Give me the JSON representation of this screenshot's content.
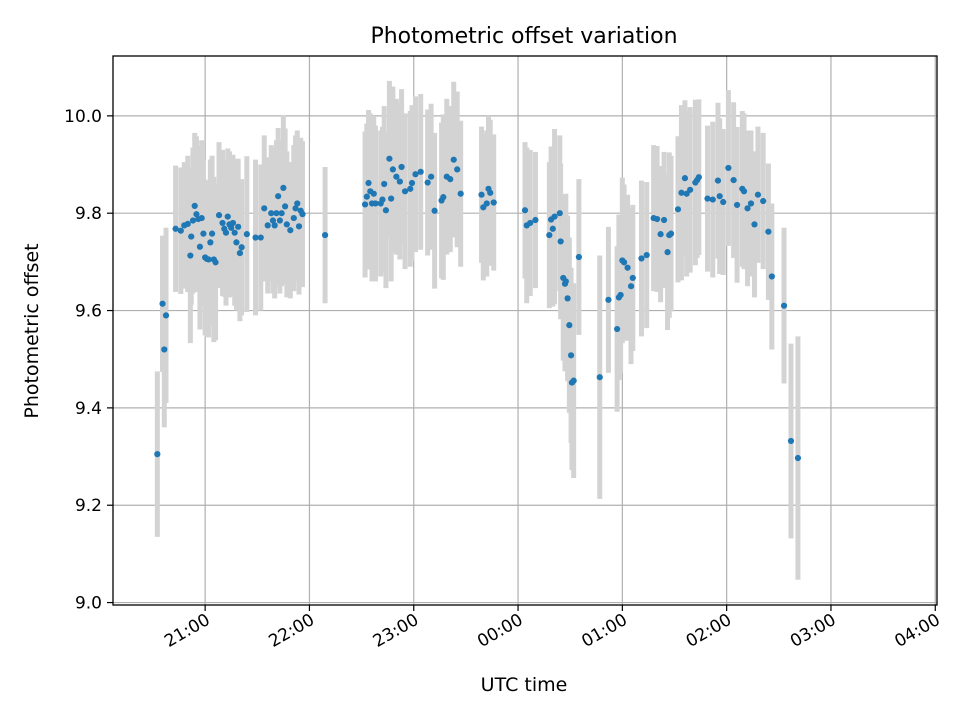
{
  "chart_data": {
    "type": "scatter",
    "title": "Photometric offset variation",
    "xlabel": "UTC time",
    "ylabel": "Photometric offset",
    "x_unit": "minutes after 20:00 UTC",
    "xlim": [
      7,
      481
    ],
    "ylim": [
      8.995,
      10.123
    ],
    "grid": true,
    "colors": {
      "points": "#1f77b4",
      "errorbars": "#d3d3d3",
      "grid": "#b0b0b0"
    },
    "x_ticks": [
      {
        "value": 60,
        "label": "21:00"
      },
      {
        "value": 120,
        "label": "22:00"
      },
      {
        "value": 180,
        "label": "23:00"
      },
      {
        "value": 240,
        "label": "00:00"
      },
      {
        "value": 300,
        "label": "01:00"
      },
      {
        "value": 360,
        "label": "02:00"
      },
      {
        "value": 420,
        "label": "03:00"
      },
      {
        "value": 480,
        "label": "04:00"
      }
    ],
    "y_ticks": [
      {
        "value": 9.0,
        "label": "9.0"
      },
      {
        "value": 9.2,
        "label": "9.2"
      },
      {
        "value": 9.4,
        "label": "9.4"
      },
      {
        "value": 9.6,
        "label": "9.6"
      },
      {
        "value": 9.8,
        "label": "9.8"
      },
      {
        "value": 10.0,
        "label": "10.0"
      }
    ],
    "points": [
      [
        32.5,
        9.305,
        0.17
      ],
      [
        35.5,
        9.614,
        0.14
      ],
      [
        36.5,
        9.52,
        0.16
      ],
      [
        37.5,
        9.59,
        0.18
      ],
      [
        43,
        9.768,
        0.13
      ],
      [
        46,
        9.764,
        0.13
      ],
      [
        48,
        9.775,
        0.13
      ],
      [
        50,
        9.778,
        0.14
      ],
      [
        51.5,
        9.713,
        0.18
      ],
      [
        52,
        9.752,
        0.14
      ],
      [
        53,
        9.785,
        0.15
      ],
      [
        54,
        9.815,
        0.15
      ],
      [
        55,
        9.798,
        0.16
      ],
      [
        56,
        9.788,
        0.15
      ],
      [
        57,
        9.731,
        0.17
      ],
      [
        58,
        9.79,
        0.16
      ],
      [
        59,
        9.758,
        0.15
      ],
      [
        60,
        9.709,
        0.16
      ],
      [
        61,
        9.706,
        0.16
      ],
      [
        62,
        9.705,
        0.16
      ],
      [
        63,
        9.74,
        0.17
      ],
      [
        64,
        9.758,
        0.16
      ],
      [
        65,
        9.705,
        0.17
      ],
      [
        66,
        9.699,
        0.16
      ],
      [
        68,
        9.796,
        0.15
      ],
      [
        70,
        9.78,
        0.15
      ],
      [
        71,
        9.768,
        0.14
      ],
      [
        72,
        9.76,
        0.15
      ],
      [
        73,
        9.793,
        0.14
      ],
      [
        74,
        9.777,
        0.15
      ],
      [
        75,
        9.77,
        0.14
      ],
      [
        76,
        9.78,
        0.14
      ],
      [
        77,
        9.76,
        0.15
      ],
      [
        78,
        9.74,
        0.14
      ],
      [
        79,
        9.772,
        0.14
      ],
      [
        80,
        9.718,
        0.14
      ],
      [
        81,
        9.73,
        0.14
      ],
      [
        84,
        9.757,
        0.16
      ],
      [
        89,
        9.75,
        0.16
      ],
      [
        92,
        9.75,
        0.15
      ],
      [
        94,
        9.81,
        0.15
      ],
      [
        96,
        9.775,
        0.14
      ],
      [
        98,
        9.8,
        0.14
      ],
      [
        99,
        9.785,
        0.15
      ],
      [
        100,
        9.775,
        0.15
      ],
      [
        101,
        9.8,
        0.15
      ],
      [
        102,
        9.835,
        0.14
      ],
      [
        103,
        9.785,
        0.15
      ],
      [
        104,
        9.8,
        0.15
      ],
      [
        105,
        9.852,
        0.15
      ],
      [
        106,
        9.814,
        0.16
      ],
      [
        107,
        9.777,
        0.15
      ],
      [
        109,
        9.765,
        0.14
      ],
      [
        111,
        9.79,
        0.15
      ],
      [
        112,
        9.81,
        0.15
      ],
      [
        113,
        9.82,
        0.15
      ],
      [
        114,
        9.773,
        0.14
      ],
      [
        115,
        9.805,
        0.15
      ],
      [
        116,
        9.798,
        0.15
      ],
      [
        129,
        9.755,
        0.14
      ],
      [
        152,
        9.818,
        0.15
      ],
      [
        153,
        9.834,
        0.15
      ],
      [
        154,
        9.862,
        0.15
      ],
      [
        155,
        9.845,
        0.16
      ],
      [
        156,
        9.82,
        0.16
      ],
      [
        157,
        9.84,
        0.16
      ],
      [
        158,
        9.82,
        0.16
      ],
      [
        161,
        9.82,
        0.15
      ],
      [
        162,
        9.828,
        0.15
      ],
      [
        163,
        9.86,
        0.16
      ],
      [
        164,
        9.806,
        0.16
      ],
      [
        166,
        9.912,
        0.16
      ],
      [
        167,
        9.83,
        0.17
      ],
      [
        168,
        9.89,
        0.17
      ],
      [
        170,
        9.875,
        0.16
      ],
      [
        172,
        9.865,
        0.16
      ],
      [
        173,
        9.895,
        0.16
      ],
      [
        175,
        9.845,
        0.16
      ],
      [
        178,
        9.85,
        0.16
      ],
      [
        179,
        9.862,
        0.16
      ],
      [
        181,
        9.88,
        0.16
      ],
      [
        184,
        9.885,
        0.16
      ],
      [
        188,
        9.863,
        0.15
      ],
      [
        190,
        9.875,
        0.15
      ],
      [
        192,
        9.805,
        0.16
      ],
      [
        196,
        9.826,
        0.16
      ],
      [
        197,
        9.833,
        0.17
      ],
      [
        199,
        9.875,
        0.16
      ],
      [
        201,
        9.87,
        0.15
      ],
      [
        203,
        9.91,
        0.16
      ],
      [
        205,
        9.89,
        0.16
      ],
      [
        207,
        9.84,
        0.15
      ],
      [
        219,
        9.838,
        0.14
      ],
      [
        220,
        9.812,
        0.15
      ],
      [
        222,
        9.82,
        0.15
      ],
      [
        223,
        9.85,
        0.15
      ],
      [
        224,
        9.842,
        0.15
      ],
      [
        226,
        9.822,
        0.14
      ],
      [
        244,
        9.806,
        0.14
      ],
      [
        245,
        9.775,
        0.16
      ],
      [
        247,
        9.78,
        0.15
      ],
      [
        250,
        9.786,
        0.14
      ],
      [
        258,
        9.755,
        0.15
      ],
      [
        259,
        9.787,
        0.15
      ],
      [
        260,
        9.768,
        0.16
      ],
      [
        261,
        9.793,
        0.18
      ],
      [
        264,
        9.8,
        0.16
      ],
      [
        264.5,
        9.742,
        0.16
      ],
      [
        266,
        9.667,
        0.17
      ],
      [
        267,
        9.655,
        0.18
      ],
      [
        267.5,
        9.66,
        0.18
      ],
      [
        268.5,
        9.625,
        0.17
      ],
      [
        269.5,
        9.57,
        0.18
      ],
      [
        270.5,
        9.508,
        0.18
      ],
      [
        271,
        9.452,
        0.18
      ],
      [
        272,
        9.456,
        0.2
      ],
      [
        275,
        9.71,
        0.16
      ],
      [
        287,
        9.463,
        0.25
      ],
      [
        292,
        9.622,
        0.15
      ],
      [
        297,
        9.562,
        0.17
      ],
      [
        298,
        9.627,
        0.17
      ],
      [
        299,
        9.632,
        0.16
      ],
      [
        300,
        9.703,
        0.17
      ],
      [
        301,
        9.699,
        0.16
      ],
      [
        303,
        9.688,
        0.15
      ],
      [
        305,
        9.65,
        0.16
      ],
      [
        306,
        9.667,
        0.15
      ],
      [
        311,
        9.707,
        0.16
      ],
      [
        314,
        9.714,
        0.15
      ],
      [
        318,
        9.79,
        0.15
      ],
      [
        320,
        9.788,
        0.15
      ],
      [
        322,
        9.757,
        0.14
      ],
      [
        324,
        9.786,
        0.14
      ],
      [
        326,
        9.72,
        0.16
      ],
      [
        327,
        9.755,
        0.17
      ],
      [
        328,
        9.758,
        0.16
      ],
      [
        332,
        9.808,
        0.15
      ],
      [
        334,
        9.842,
        0.18
      ],
      [
        336,
        9.872,
        0.16
      ],
      [
        337,
        9.84,
        0.17
      ],
      [
        339,
        9.848,
        0.17
      ],
      [
        342,
        9.863,
        0.17
      ],
      [
        343,
        9.868,
        0.16
      ],
      [
        344,
        9.874,
        0.16
      ],
      [
        349,
        9.83,
        0.15
      ],
      [
        352,
        9.828,
        0.16
      ],
      [
        355,
        9.867,
        0.16
      ],
      [
        356,
        9.835,
        0.16
      ],
      [
        358,
        9.823,
        0.15
      ],
      [
        361,
        9.893,
        0.16
      ],
      [
        364,
        9.868,
        0.16
      ],
      [
        366,
        9.817,
        0.16
      ],
      [
        369,
        9.85,
        0.16
      ],
      [
        370,
        9.845,
        0.16
      ],
      [
        372,
        9.81,
        0.16
      ],
      [
        374,
        9.82,
        0.15
      ],
      [
        376,
        9.777,
        0.15
      ],
      [
        378,
        9.838,
        0.14
      ],
      [
        381,
        9.825,
        0.14
      ],
      [
        384,
        9.762,
        0.14
      ],
      [
        386,
        9.67,
        0.15
      ],
      [
        393,
        9.61,
        0.16
      ],
      [
        397,
        9.332,
        0.2
      ],
      [
        401,
        9.297,
        0.25
      ]
    ]
  }
}
